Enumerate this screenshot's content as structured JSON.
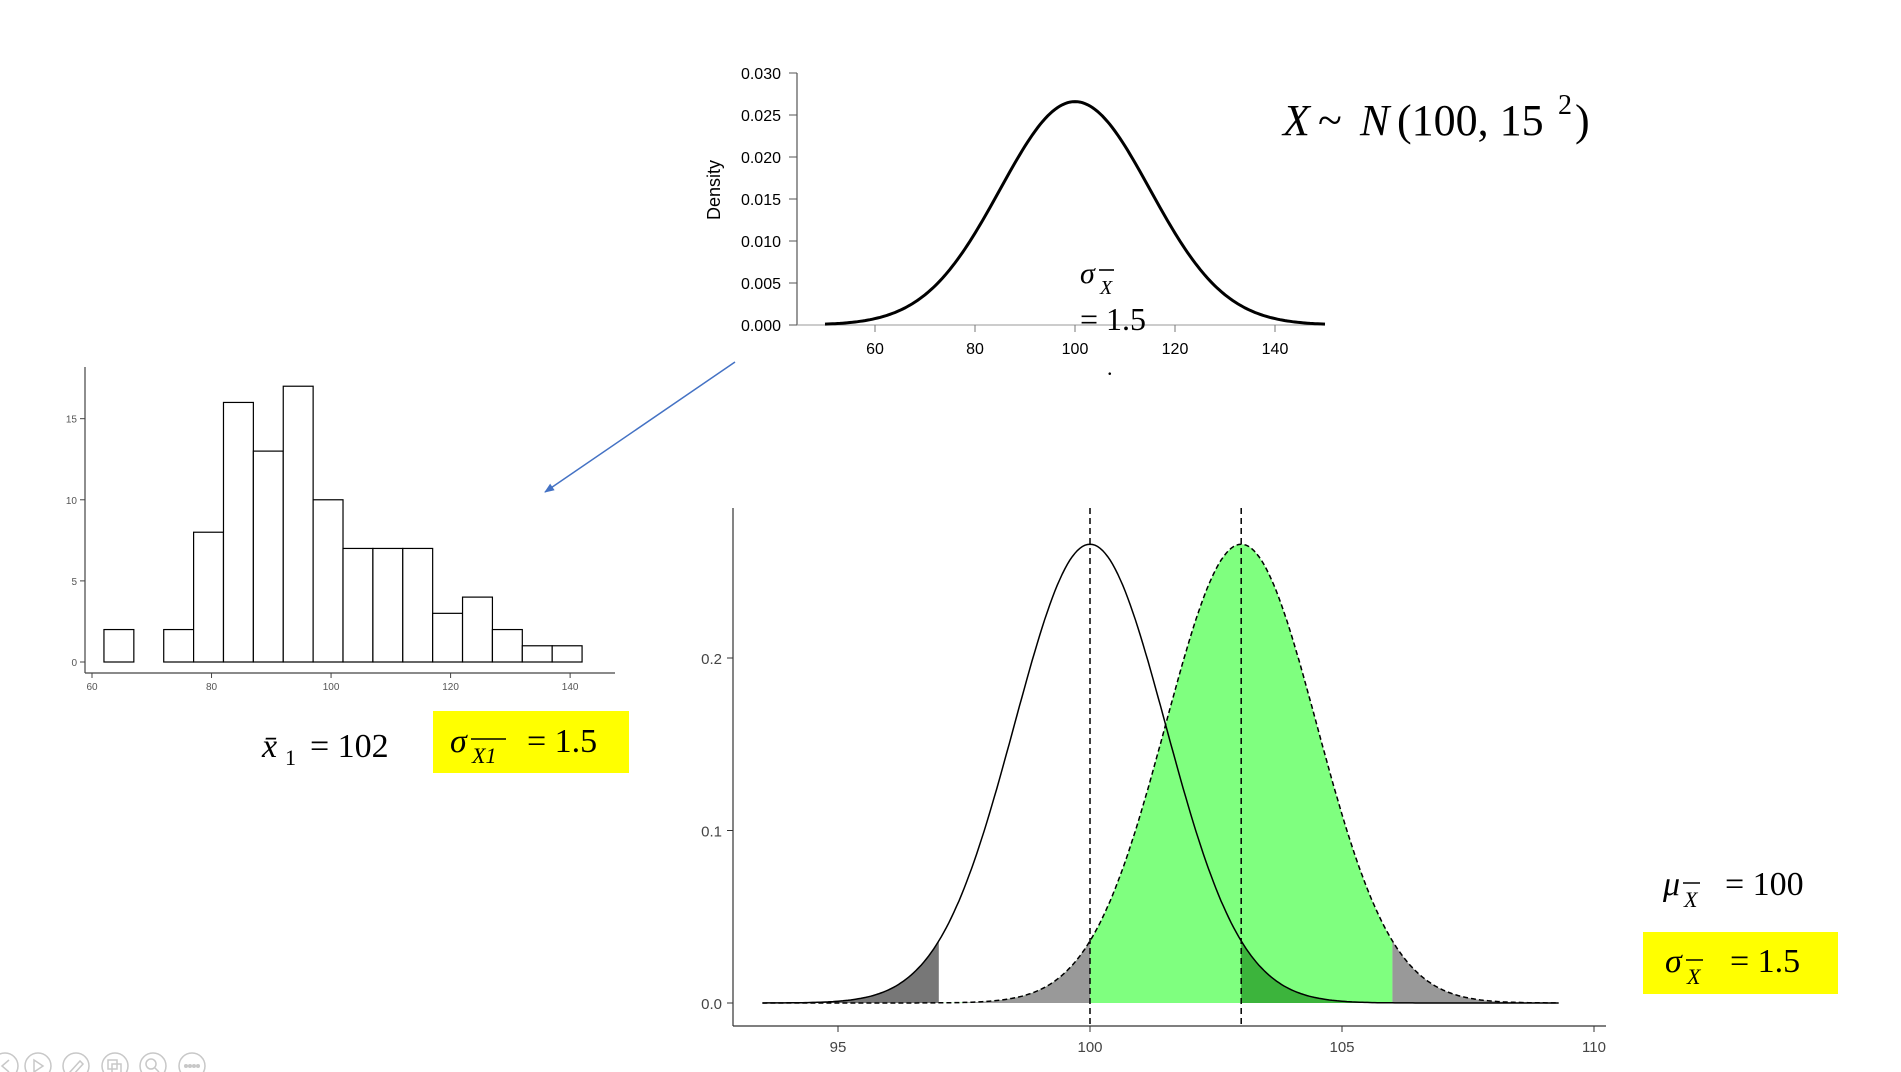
{
  "normal_plot": {
    "ylabel": "Density",
    "formula": {
      "var": "X",
      "tilde": "~",
      "dist": "N",
      "params": "(100, 15",
      "exp": "2",
      "close": ")"
    },
    "overlay": {
      "sigma": "σ",
      "sub": "X",
      "value": "= 1.5",
      "dot": "."
    }
  },
  "histogram_labels": {
    "xbar": "x̄",
    "xbar_sub": "1",
    "xbar_value": "= 102",
    "sigma": "σ",
    "sigma_sub": "X1",
    "sigma_value": "= 1.5"
  },
  "right_labels": {
    "mu": "μ",
    "mu_sub": "X",
    "mu_value": "= 100",
    "sigma": "σ",
    "sigma_sub": "X",
    "sigma_value": "= 1.5"
  },
  "colors": {
    "highlight": "#ffff00",
    "arrow": "#4472c4",
    "green": "#7fff7f",
    "dark_green": "#3cb43c",
    "gray": "#999999",
    "dark_gray": "#777777"
  },
  "toolbar_icons": [
    "prev-icon",
    "play-icon",
    "pen-icon",
    "slides-icon",
    "zoom-icon",
    "more-icon"
  ],
  "chart_data": [
    {
      "type": "line",
      "x_ticks": [
        60,
        80,
        100,
        120,
        140
      ],
      "y_ticks": [
        "0.000",
        "0.005",
        "0.010",
        "0.015",
        "0.020",
        "0.025",
        "0.030"
      ],
      "xlim": [
        50,
        150
      ],
      "ylim": [
        0,
        0.03
      ],
      "ylabel": "Density",
      "series": [
        {
          "mean": 100,
          "sd": 15
        }
      ]
    },
    {
      "type": "bar",
      "x_ticks": [
        60,
        80,
        100,
        120,
        140
      ],
      "y_ticks": [
        0,
        5,
        10,
        15
      ],
      "bin_start": 62,
      "bin_width": 5,
      "values": [
        2,
        0,
        2,
        8,
        16,
        13,
        17,
        10,
        7,
        7,
        7,
        3,
        4,
        2,
        1,
        1
      ],
      "xlim": [
        60,
        145
      ],
      "ylim": [
        0,
        18
      ]
    },
    {
      "type": "area",
      "x_ticks": [
        95,
        100,
        105,
        110
      ],
      "y_ticks": [
        "0.0",
        "0.1",
        "0.2"
      ],
      "xlim": [
        93,
        110
      ],
      "ylim": [
        0,
        0.27
      ],
      "series": [
        {
          "mean": 100,
          "sd": 1.5,
          "style": "solid"
        },
        {
          "mean": 103,
          "sd": 1.5,
          "style": "dashed"
        }
      ],
      "vlines": [
        100,
        103
      ],
      "critical_values": [
        97,
        103,
        106
      ]
    }
  ]
}
